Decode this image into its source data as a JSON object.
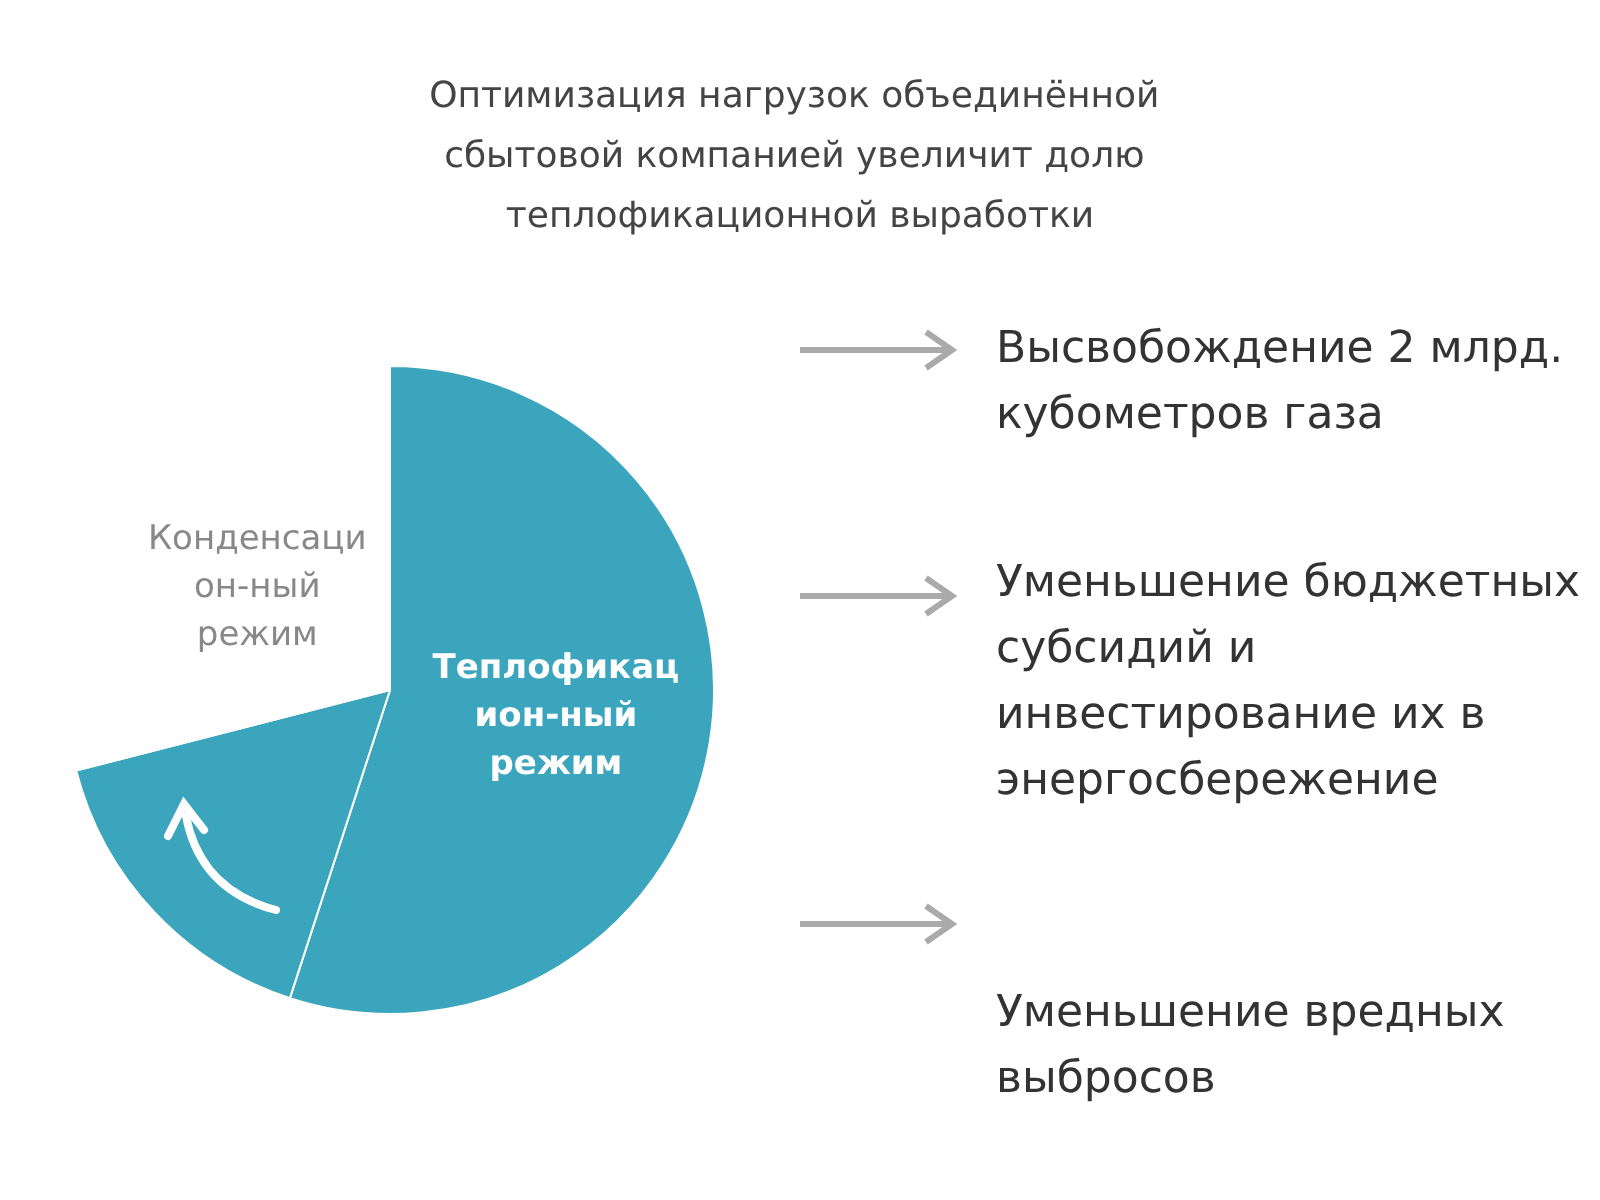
{
  "chart_data": {
    "type": "pie",
    "title": "Оптимизация нагрузок объединённой сбытовой компанией увеличит долю теплофикационной выработки",
    "categories": [
      "Теплофикац\nион-ный\nрежим",
      null,
      "Конденсаци\nон-ный\nрежим"
    ],
    "values": [
      55,
      16,
      29
    ],
    "colors": [
      "#3ba5bd",
      "#3ba5bd",
      "#ffffff"
    ],
    "annotations": [
      "Высвобождение 2 млрд. кубометров газа",
      "Уменьшение бюджетных субсидий и инвестирование их в энергосбережение",
      "Уменьшение вредных выбросов"
    ]
  }
}
